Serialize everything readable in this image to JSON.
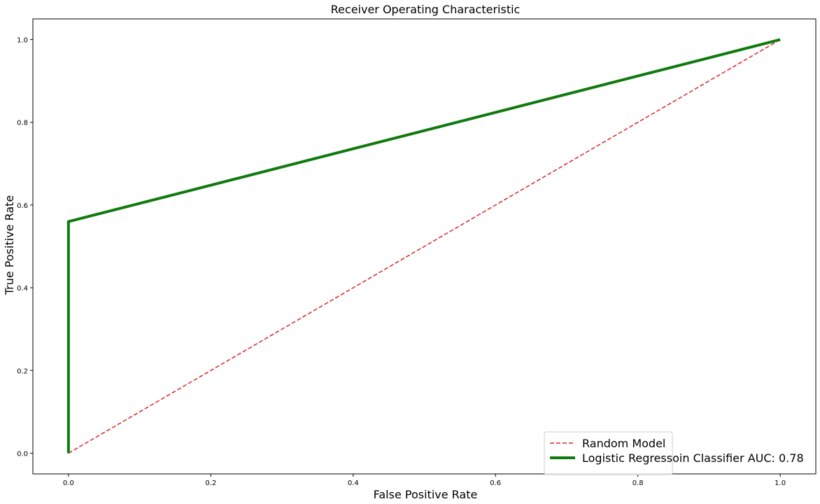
{
  "chart_data": {
    "type": "line",
    "title": "Receiver Operating Characteristic",
    "xlabel": "False Positive Rate",
    "ylabel": "True Positive Rate",
    "xlim": [
      -0.05,
      1.05
    ],
    "ylim": [
      -0.05,
      1.05
    ],
    "xticks": [
      "0.0",
      "0.2",
      "0.4",
      "0.6",
      "0.8",
      "1.0"
    ],
    "yticks": [
      "0.0",
      "0.2",
      "0.4",
      "0.6",
      "0.8",
      "1.0"
    ],
    "grid": false,
    "legend_position": "lower-right",
    "series": [
      {
        "name": "Random Model",
        "style": "dashed",
        "color": "#d62728",
        "x": [
          0,
          1
        ],
        "y": [
          0,
          1
        ]
      },
      {
        "name": "Logistic Regressoin Classifier AUC: 0.78",
        "style": "solid",
        "color": "#107a10",
        "x": [
          0,
          0,
          1
        ],
        "y": [
          0,
          0.56,
          1
        ]
      }
    ]
  }
}
